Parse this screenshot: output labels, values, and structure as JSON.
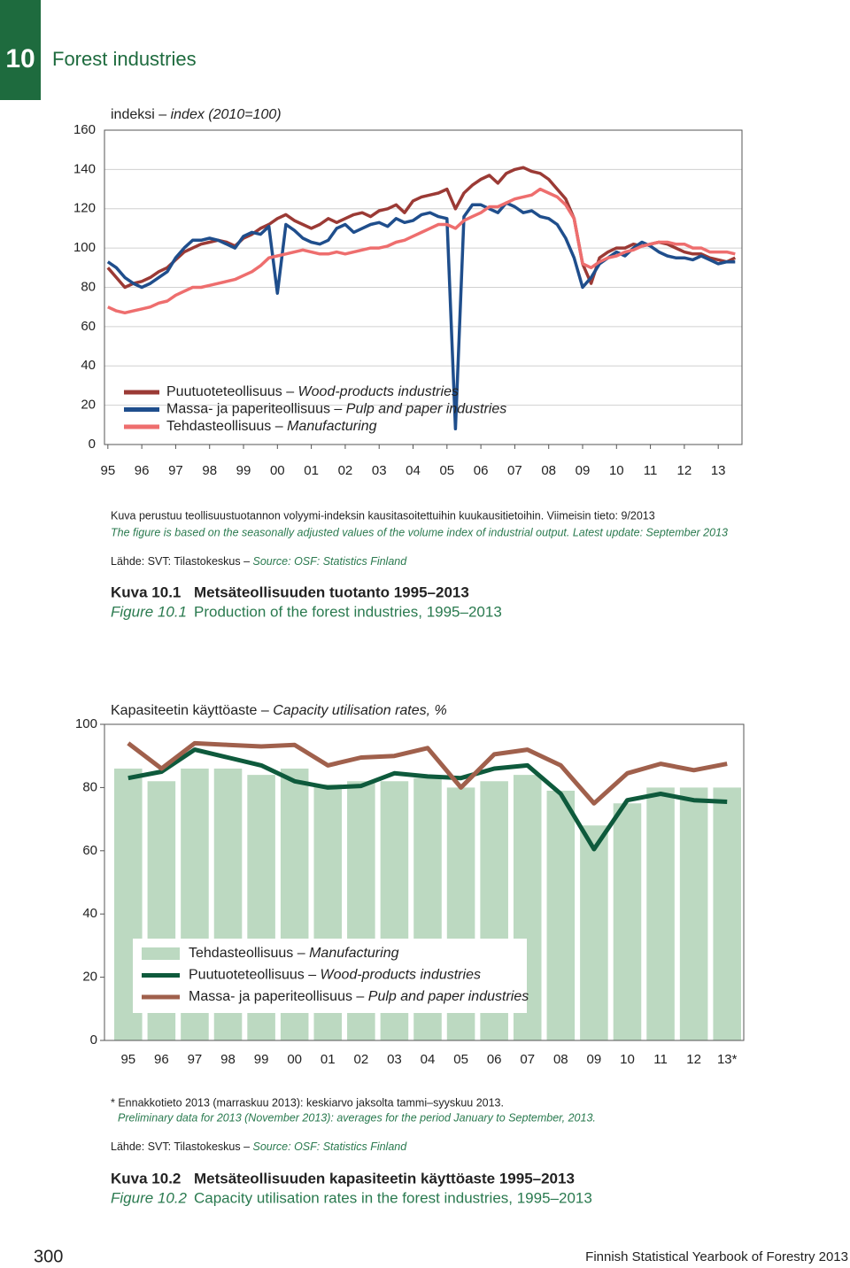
{
  "header": {
    "chapter": "10",
    "title": "Forest industries"
  },
  "chart_data": [
    {
      "type": "line",
      "ylabel": "indeksi – index (2010=100)",
      "x": [
        1995,
        1995.25,
        1995.5,
        1995.75,
        1996,
        1996.25,
        1996.5,
        1996.75,
        1997,
        1997.25,
        1997.5,
        1997.75,
        1998,
        1998.25,
        1998.5,
        1998.75,
        1999,
        1999.25,
        1999.5,
        1999.75,
        2000,
        2000.25,
        2000.5,
        2000.75,
        2001,
        2001.25,
        2001.5,
        2001.75,
        2002,
        2002.25,
        2002.5,
        2002.75,
        2003,
        2003.25,
        2003.5,
        2003.75,
        2004,
        2004.25,
        2004.5,
        2004.75,
        2005,
        2005.25,
        2005.5,
        2005.75,
        2006,
        2006.25,
        2006.5,
        2006.75,
        2007,
        2007.25,
        2007.5,
        2007.75,
        2008,
        2008.25,
        2008.5,
        2008.75,
        2009,
        2009.25,
        2009.5,
        2009.75,
        2010,
        2010.25,
        2010.5,
        2010.75,
        2011,
        2011.25,
        2011.5,
        2011.75,
        2012,
        2012.25,
        2012.5,
        2012.75,
        2013,
        2013.25,
        2013.5
      ],
      "series": [
        {
          "name": "Puutuoteteollisuus – Wood-products industries",
          "color": "#9b3a35",
          "values": [
            90,
            85,
            80,
            82,
            83,
            85,
            88,
            90,
            94,
            98,
            100,
            102,
            103,
            104,
            103,
            101,
            105,
            107,
            110,
            112,
            115,
            117,
            114,
            112,
            110,
            112,
            115,
            113,
            115,
            117,
            118,
            116,
            119,
            120,
            122,
            118,
            124,
            126,
            127,
            128,
            130,
            120,
            128,
            132,
            135,
            137,
            133,
            138,
            140,
            141,
            139,
            138,
            135,
            130,
            125,
            115,
            92,
            82,
            95,
            98,
            100,
            100,
            102,
            101,
            102,
            103,
            102,
            100,
            98,
            97,
            97,
            95,
            94,
            93,
            95
          ]
        },
        {
          "name": "Massa- ja paperiteollisuus – Pulp and paper industries",
          "color": "#1f4e8c",
          "values": [
            93,
            90,
            85,
            82,
            80,
            82,
            85,
            88,
            95,
            100,
            104,
            104,
            105,
            104,
            102,
            100,
            106,
            108,
            107,
            111,
            77,
            112,
            109,
            105,
            103,
            102,
            104,
            110,
            112,
            108,
            110,
            112,
            113,
            111,
            115,
            113,
            114,
            117,
            118,
            116,
            115,
            8,
            116,
            122,
            122,
            120,
            118,
            123,
            121,
            118,
            119,
            116,
            115,
            112,
            105,
            95,
            80,
            85,
            92,
            95,
            98,
            96,
            100,
            103,
            101,
            98,
            96,
            95,
            95,
            94,
            96,
            94,
            92,
            93,
            93
          ]
        },
        {
          "name": "Tehdasteollisuus – Manufacturing",
          "color": "#ee6e6e",
          "values": [
            70,
            68,
            67,
            68,
            69,
            70,
            72,
            73,
            76,
            78,
            80,
            80,
            81,
            82,
            83,
            84,
            86,
            88,
            91,
            95,
            96,
            97,
            98,
            99,
            98,
            97,
            97,
            98,
            97,
            98,
            99,
            100,
            100,
            101,
            103,
            104,
            106,
            108,
            110,
            112,
            112,
            110,
            114,
            116,
            118,
            121,
            121,
            123,
            125,
            126,
            127,
            130,
            128,
            126,
            122,
            115,
            92,
            90,
            93,
            95,
            96,
            98,
            99,
            101,
            102,
            103,
            103,
            102,
            102,
            100,
            100,
            98,
            98,
            98,
            97
          ]
        }
      ],
      "xlim": [
        1994.9,
        2013.7
      ],
      "xticks": [
        {
          "value": 1995,
          "label": "95"
        },
        {
          "value": 1996,
          "label": "96"
        },
        {
          "value": 1997,
          "label": "97"
        },
        {
          "value": 1998,
          "label": "98"
        },
        {
          "value": 1999,
          "label": "99"
        },
        {
          "value": 2000,
          "label": "00"
        },
        {
          "value": 2001,
          "label": "01"
        },
        {
          "value": 2002,
          "label": "02"
        },
        {
          "value": 2003,
          "label": "03"
        },
        {
          "value": 2004,
          "label": "04"
        },
        {
          "value": 2005,
          "label": "05"
        },
        {
          "value": 2006,
          "label": "06"
        },
        {
          "value": 2007,
          "label": "07"
        },
        {
          "value": 2008,
          "label": "08"
        },
        {
          "value": 2009,
          "label": "09"
        },
        {
          "value": 2010,
          "label": "10"
        },
        {
          "value": 2011,
          "label": "11"
        },
        {
          "value": 2012,
          "label": "12"
        },
        {
          "value": 2013,
          "label": "13"
        }
      ],
      "ylim": [
        0,
        160
      ],
      "yticks": [
        0,
        20,
        40,
        60,
        80,
        100,
        120,
        140,
        160
      ],
      "grid": true,
      "legend": "lower left"
    },
    {
      "type": "bar",
      "ylabel": "Kapasiteetin käyttöaste – Capacity utilisation rates, %",
      "categories": [
        "95",
        "96",
        "97",
        "98",
        "99",
        "00",
        "01",
        "02",
        "03",
        "04",
        "05",
        "06",
        "07",
        "08",
        "09",
        "10",
        "11",
        "12",
        "13*"
      ],
      "series": [
        {
          "name": "Tehdasteollisuus – Manufacturing",
          "type": "bar",
          "color": "#bcd9c1",
          "values": [
            86,
            82,
            86,
            86,
            84,
            86,
            81,
            82,
            82,
            83,
            80,
            82,
            84,
            79,
            68,
            75,
            80,
            80,
            80
          ]
        },
        {
          "name": "Puutuoteteollisuus – Wood-products industries",
          "type": "line",
          "color": "#0e5a3c",
          "values": [
            83,
            85,
            92,
            89.5,
            87,
            82,
            80,
            80.5,
            84.5,
            83.5,
            83,
            86,
            87,
            78,
            60.5,
            76,
            78,
            76,
            75.5
          ]
        },
        {
          "name": "Massa- ja paperiteollisuus – Pulp and paper industries",
          "type": "line",
          "color": "#a0604c",
          "values": [
            94,
            86,
            94,
            93.5,
            93,
            93.5,
            87,
            89.5,
            90,
            92.5,
            80,
            90.5,
            92,
            87,
            75,
            84.5,
            87.5,
            85.5,
            87.5
          ]
        }
      ],
      "ylim": [
        0,
        100
      ],
      "yticks": [
        0,
        20,
        40,
        60,
        80,
        100
      ],
      "grid": false,
      "legend": "lower left"
    }
  ],
  "figure1": {
    "note_fi": "Kuva perustuu teollisuustuotannon volyymi-indeksin kausitasoitettuihin kuukausitietoihin. Viimeisin tieto: 9/2013",
    "note_en": "The figure is based on the seasonally adjusted values of the volume index of industrial output. Latest update: September 2013",
    "source": "Lähde: SVT: Tilastokeskus – Source: OSF: Statistics Finland",
    "label_fi": "Kuva 10.1",
    "caption_fi": "Metsäteollisuuden tuotanto 1995–2013",
    "label_en": "Figure 10.1",
    "caption_en": "Production of the forest industries, 1995–2013"
  },
  "figure2": {
    "note_fi": "* Ennakkotieto 2013 (marraskuu 2013): keskiarvo jaksolta tammi–syyskuu 2013.",
    "note_en": "Preliminary data for 2013 (November 2013): averages for the period January to September, 2013.",
    "source": "Lähde: SVT: Tilastokeskus – Source: OSF: Statistics Finland",
    "label_fi": "Kuva 10.2",
    "caption_fi": "Metsäteollisuuden kapasiteetin käyttöaste 1995–2013",
    "label_en": "Figure 10.2",
    "caption_en": "Capacity utilisation rates in the forest industries, 1995–2013"
  },
  "footer": {
    "page": "300",
    "publication": "Finnish Statistical Yearbook of Forestry 2013"
  }
}
